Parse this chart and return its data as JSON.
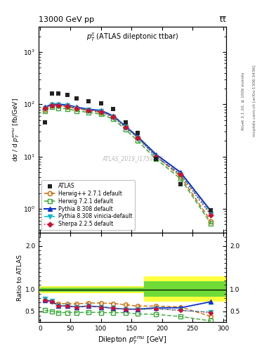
{
  "title_left": "13000 GeV pp",
  "title_right": "t̅t̅",
  "inner_title": "$p_T^{ll}$ (ATLAS dileptonic ttbar)",
  "ylabel_main": "dσ / d $p_T^{emu}$ [fb/GeV]",
  "ylabel_ratio": "Ratio to ATLAS",
  "xlabel": "Dilepton $p_T^{emu}$ [GeV]",
  "watermark": "ATLAS_2019_I1759875",
  "rivet_label": "Rivet 3.1.10, ≥ 100k events",
  "mcplots_label": "mcplots.cern.ch [arXiv:1306.3436]",
  "x_data": [
    8,
    20,
    30,
    45,
    60,
    80,
    100,
    120,
    140,
    160,
    190,
    230,
    280
  ],
  "atlas_data": [
    45,
    160,
    160,
    150,
    130,
    115,
    105,
    82,
    45,
    28,
    9,
    3.0,
    0.95
  ],
  "herwig271_data": [
    80,
    95,
    95,
    90,
    82,
    76,
    70,
    58,
    37,
    23,
    10,
    4.2,
    0.58
  ],
  "herwig721_data": [
    75,
    88,
    85,
    82,
    75,
    70,
    65,
    52,
    33,
    20,
    9,
    3.8,
    0.52
  ],
  "pythia8308_data": [
    88,
    100,
    100,
    97,
    88,
    80,
    76,
    60,
    38,
    24,
    11,
    5.0,
    0.9
  ],
  "pythia8308v_data": [
    85,
    97,
    97,
    94,
    85,
    78,
    73,
    58,
    37,
    23,
    10,
    4.6,
    0.8
  ],
  "sherpa225_data": [
    83,
    95,
    95,
    92,
    83,
    77,
    72,
    57,
    36,
    23,
    10,
    4.5,
    0.75
  ],
  "herwig271_ratio": [
    0.75,
    0.73,
    0.68,
    0.67,
    0.67,
    0.69,
    0.69,
    0.68,
    0.65,
    0.62,
    0.62,
    0.6,
    0.38
  ],
  "herwig721_ratio": [
    0.52,
    0.5,
    0.47,
    0.47,
    0.47,
    0.48,
    0.47,
    0.47,
    0.47,
    0.44,
    0.43,
    0.38,
    0.28
  ],
  "pythia8308_ratio": [
    0.75,
    0.73,
    0.63,
    0.62,
    0.6,
    0.62,
    0.6,
    0.57,
    0.55,
    0.55,
    0.58,
    0.58,
    0.72
  ],
  "pythia8308v_ratio": [
    0.78,
    0.73,
    0.63,
    0.62,
    0.6,
    0.62,
    0.6,
    0.57,
    0.55,
    0.54,
    0.56,
    0.52,
    0.48
  ],
  "sherpa225_ratio": [
    0.75,
    0.72,
    0.62,
    0.62,
    0.6,
    0.62,
    0.6,
    0.57,
    0.55,
    0.54,
    0.56,
    0.52,
    0.47
  ],
  "colors": {
    "atlas": "#222222",
    "herwig271": "#cc6600",
    "herwig721": "#33aa33",
    "pythia8308": "#1133cc",
    "pythia8308v": "#11bbcc",
    "sherpa225": "#cc1133"
  },
  "ylim_main": [
    0.35,
    3000
  ],
  "ylim_ratio": [
    0.25,
    2.3
  ],
  "xlim": [
    -2,
    305
  ]
}
